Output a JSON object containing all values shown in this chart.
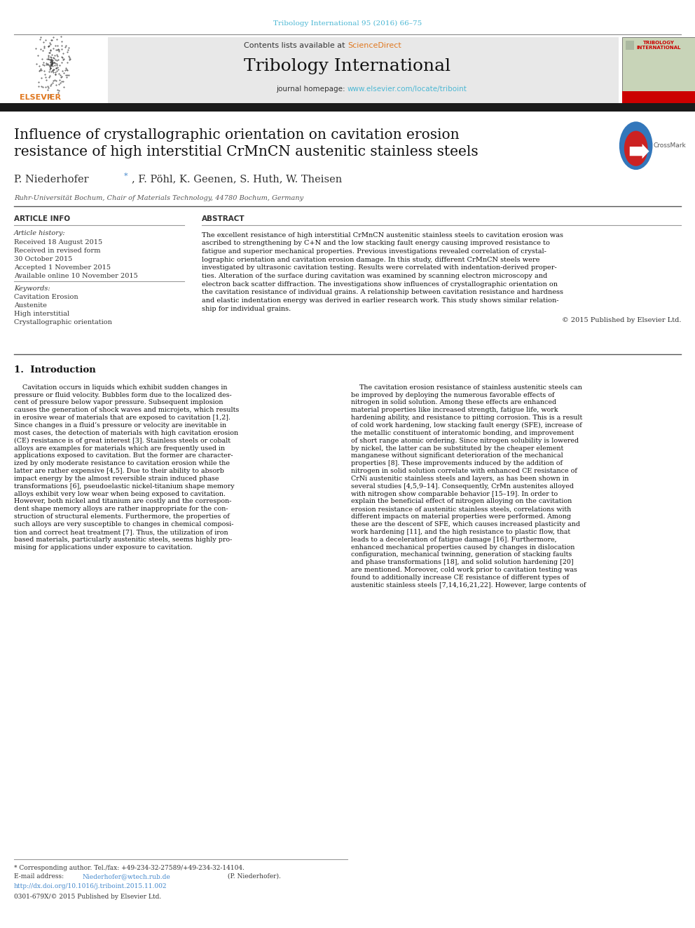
{
  "page_width": 9.92,
  "page_height": 13.23,
  "bg_color": "#ffffff",
  "top_journal_ref": "Tribology International 95 (2016) 66–75",
  "top_journal_ref_color": "#4db8d4",
  "header_bg": "#e8e8e8",
  "header_contents_text": "Contents lists available at ",
  "header_sciencedirect": "ScienceDirect",
  "header_sciencedirect_color": "#e07820",
  "header_journal_name": "Tribology International",
  "header_homepage_text": "journal homepage: ",
  "header_homepage_url": "www.elsevier.com/locate/triboint",
  "header_homepage_url_color": "#4db8d4",
  "black_bar_color": "#1a1a1a",
  "paper_title": "Influence of crystallographic orientation on cavitation erosion\nresistance of high interstitial CrMnCN austenitic stainless steels",
  "affiliation": "Ruhr-Universität Bochum, Chair of Materials Technology, 44780 Bochum, Germany",
  "article_info_header": "ARTICLE INFO",
  "abstract_header": "ABSTRACT",
  "article_history_label": "Article history:",
  "received_1": "Received 18 August 2015",
  "received_revised": "Received in revised form",
  "received_revised_date": "30 October 2015",
  "accepted": "Accepted 1 November 2015",
  "available": "Available online 10 November 2015",
  "keywords_label": "Keywords:",
  "keywords": [
    "Cavitation Erosion",
    "Austenite",
    "High interstitial",
    "Crystallographic orientation"
  ],
  "copyright_text": "© 2015 Published by Elsevier Ltd.",
  "section1_title": "1.  Introduction",
  "footer_text1": "* Corresponding author. Tel./fax: +49-234-32-27589/+49-234-32-14104.",
  "footer_email_pre": "E-mail address: ",
  "footer_email_link": "Niederhofer@wtech.rub.de",
  "footer_email_post": " (P. Niederhofer).",
  "footer_doi": "http://dx.doi.org/10.1016/j.triboint.2015.11.002",
  "footer_copyright": "0301-679X/© 2015 Published by Elsevier Ltd.",
  "separator_color": "#555555",
  "light_separator_color": "#999999",
  "abstract_lines": [
    "The excellent resistance of high interstitial CrMnCN austenitic stainless steels to cavitation erosion was",
    "ascribed to strengthening by C+N and the low stacking fault energy causing improved resistance to",
    "fatigue and superior mechanical properties. Previous investigations revealed correlation of crystal-",
    "lographic orientation and cavitation erosion damage. In this study, different CrMnCN steels were",
    "investigated by ultrasonic cavitation testing. Results were correlated with indentation-derived proper-",
    "ties. Alteration of the surface during cavitation was examined by scanning electron microscopy and",
    "electron back scatter diffraction. The investigations show influences of crystallographic orientation on",
    "the cavitation resistance of individual grains. A relationship between cavitation resistance and hardness",
    "and elastic indentation energy was derived in earlier research work. This study shows similar relation-",
    "ship for individual grains."
  ],
  "col1_lines": [
    "    Cavitation occurs in liquids which exhibit sudden changes in",
    "pressure or fluid velocity. Bubbles form due to the localized des-",
    "cent of pressure below vapor pressure. Subsequent implosion",
    "causes the generation of shock waves and microjets, which results",
    "in erosive wear of materials that are exposed to cavitation [1,2].",
    "Since changes in a fluid’s pressure or velocity are inevitable in",
    "most cases, the detection of materials with high cavitation erosion",
    "(CE) resistance is of great interest [3]. Stainless steels or cobalt",
    "alloys are examples for materials which are frequently used in",
    "applications exposed to cavitation. But the former are character-",
    "ized by only moderate resistance to cavitation erosion while the",
    "latter are rather expensive [4,5]. Due to their ability to absorb",
    "impact energy by the almost reversible strain induced phase",
    "transformations [6], pseudoelastic nickel-titanium shape memory",
    "alloys exhibit very low wear when being exposed to cavitation.",
    "However, both nickel and titanium are costly and the correspon-",
    "dent shape memory alloys are rather inappropriate for the con-",
    "struction of structural elements. Furthermore, the properties of",
    "such alloys are very susceptible to changes in chemical composi-",
    "tion and correct heat treatment [7]. Thus, the utilization of iron",
    "based materials, particularly austenitic steels, seems highly pro-",
    "mising for applications under exposure to cavitation."
  ],
  "col2_lines": [
    "    The cavitation erosion resistance of stainless austenitic steels can",
    "be improved by deploying the numerous favorable effects of",
    "nitrogen in solid solution. Among these effects are enhanced",
    "material properties like increased strength, fatigue life, work",
    "hardening ability, and resistance to pitting corrosion. This is a result",
    "of cold work hardening, low stacking fault energy (SFE), increase of",
    "the metallic constituent of interatomic bonding, and improvement",
    "of short range atomic ordering. Since nitrogen solubility is lowered",
    "by nickel, the latter can be substituted by the cheaper element",
    "manganese without significant deterioration of the mechanical",
    "properties [8]. These improvements induced by the addition of",
    "nitrogen in solid solution correlate with enhanced CE resistance of",
    "CrNi austenitic stainless steels and layers, as has been shown in",
    "several studies [4,5,9–14]. Consequently, CrMn austenites alloyed",
    "with nitrogen show comparable behavior [15–19]. In order to",
    "explain the beneficial effect of nitrogen alloying on the cavitation",
    "erosion resistance of austenitic stainless steels, correlations with",
    "different impacts on material properties were performed. Among",
    "these are the descent of SFE, which causes increased plasticity and",
    "work hardening [11], and the high resistance to plastic flow, that",
    "leads to a deceleration of fatigue damage [16]. Furthermore,",
    "enhanced mechanical properties caused by changes in dislocation",
    "configuration, mechanical twinning, generation of stacking faults",
    "and phase transformations [18], and solid solution hardening [20]",
    "are mentioned. Moreover, cold work prior to cavitation testing was",
    "found to additionally increase CE resistance of different types of",
    "austenitic stainless steels [7,14,16,21,22]. However, large contents of"
  ]
}
